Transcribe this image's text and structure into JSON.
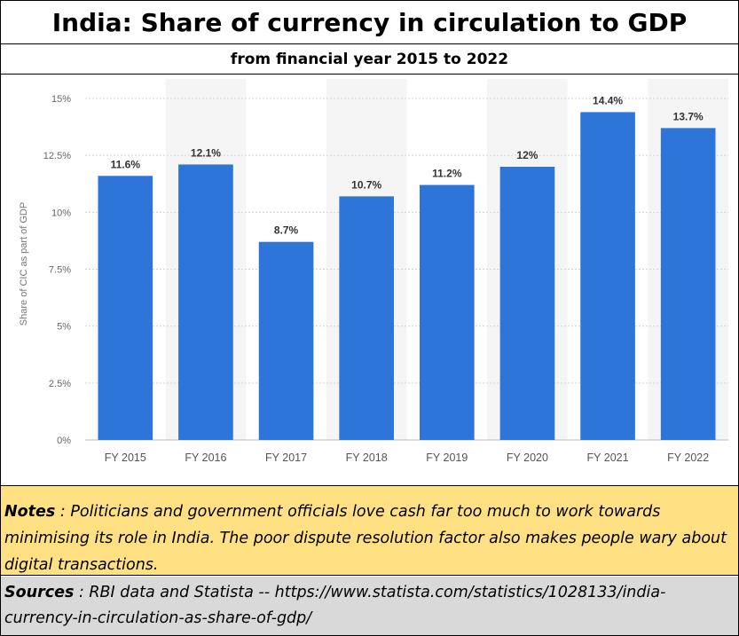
{
  "header": {
    "title": "India: Share of currency in circulation to GDP",
    "subtitle": "from financial year 2015 to 2022"
  },
  "chart_data": {
    "type": "bar",
    "categories": [
      "FY 2015",
      "FY 2016",
      "FY 2017",
      "FY 2018",
      "FY 2019",
      "FY 2020",
      "FY 2021",
      "FY 2022"
    ],
    "values": [
      11.6,
      12.1,
      8.7,
      10.7,
      11.2,
      12,
      14.4,
      13.7
    ],
    "data_labels": [
      "11.6%",
      "12.1%",
      "8.7%",
      "10.7%",
      "11.2%",
      "12%",
      "14.4%",
      "13.7%"
    ],
    "ylabel": "Share of CIC as part of GDP",
    "xlabel": "",
    "ylim": [
      0,
      15
    ],
    "yticks": [
      0,
      2.5,
      5,
      7.5,
      10,
      12.5,
      15
    ],
    "ytick_labels": [
      "0%",
      "2.5%",
      "5%",
      "7.5%",
      "10%",
      "12.5%",
      "15%"
    ],
    "grid": true,
    "bar_color": "#2e75d9"
  },
  "notes": {
    "label": "Notes",
    "text": " : Politicians and government officials love cash far too much to work towards minimising its role in India.  The poor dispute resolution factor also makes people wary about digital transactions."
  },
  "sources": {
    "label": "Sources",
    "text": " : RBI data and Statista -- https://www.statista.com/statistics/1028133/india-currency-in-circulation-as-share-of-gdp/"
  },
  "colors": {
    "notes_bg": "#ffe082",
    "sources_bg": "#d9d9d9"
  }
}
